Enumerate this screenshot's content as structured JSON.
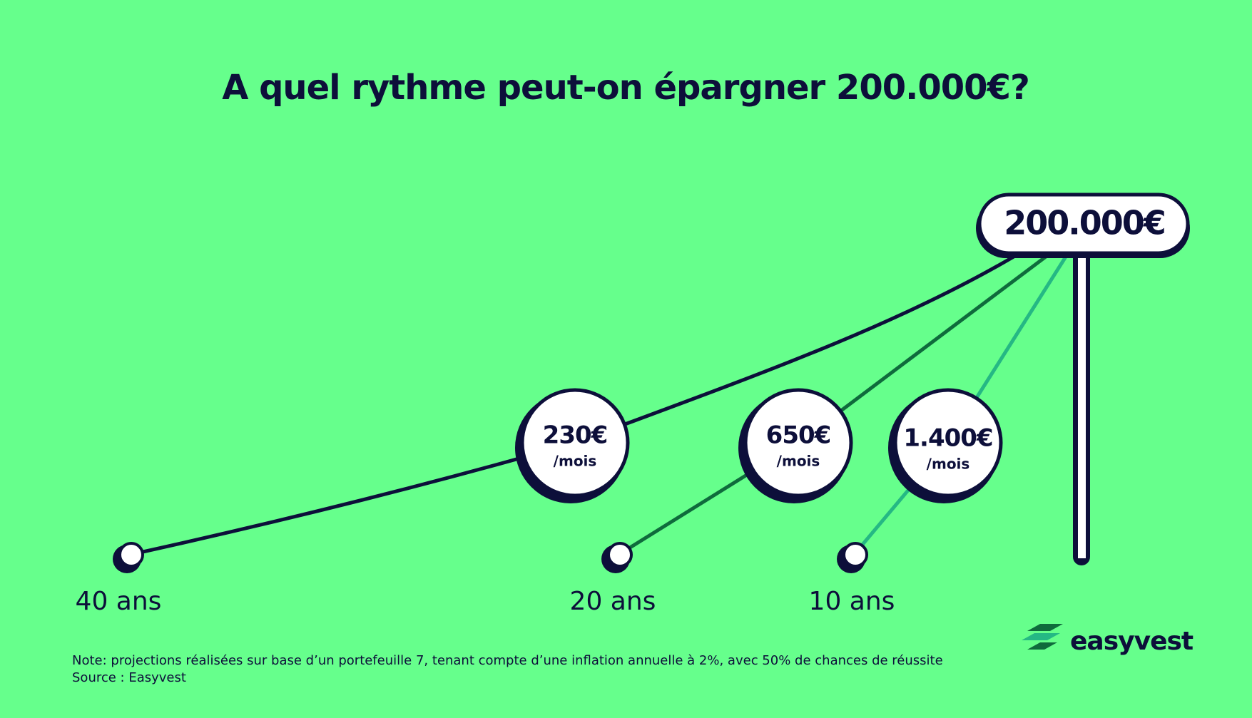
{
  "title": "A quel rythme peut-on épargner 200.000€?",
  "target": {
    "label": "200.000€"
  },
  "paths": [
    {
      "amount": "230€",
      "unit": "/mois",
      "duration": "40 ans"
    },
    {
      "amount": "650€",
      "unit": "/mois",
      "duration": "20 ans"
    },
    {
      "amount": "1.400€",
      "unit": "/mois",
      "duration": "10 ans"
    }
  ],
  "footer": {
    "note": "Note: projections réalisées sur base d’un portefeuille 7, tenant compte d’une inflation annuelle à 2%, avec 50% de chances de réussite",
    "source": "Source : Easyvest"
  },
  "logo": {
    "text": "easyvest"
  }
}
